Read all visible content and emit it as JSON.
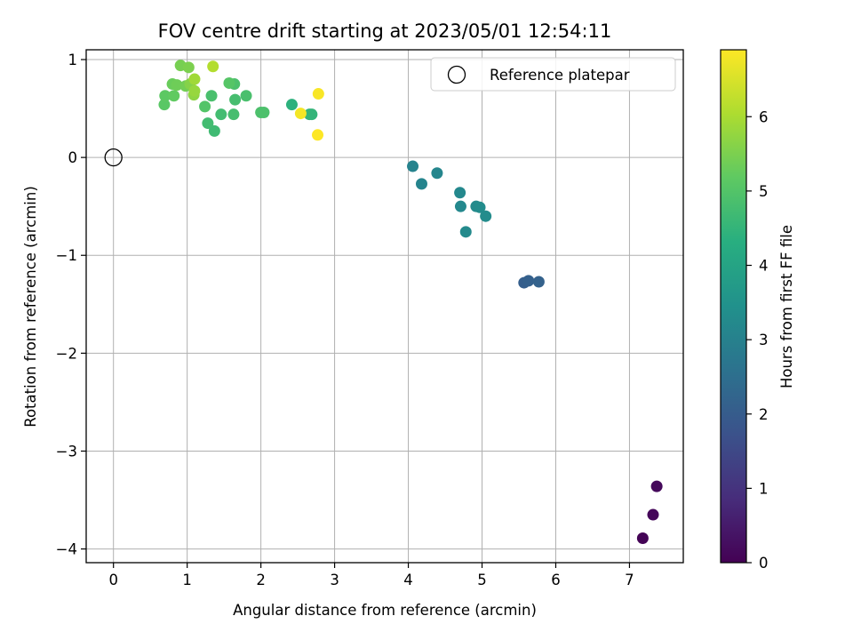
{
  "chart_data": {
    "type": "scatter",
    "title": "FOV centre drift starting at 2023/05/01 12:54:11",
    "xlabel": "Angular distance from reference (arcmin)",
    "ylabel": "Rotation from reference (arcmin)",
    "xlim": [
      -0.37,
      7.73
    ],
    "ylim": [
      -4.14,
      1.1
    ],
    "xticks": [
      0,
      1,
      2,
      3,
      4,
      5,
      6,
      7
    ],
    "yticks": [
      -4,
      -3,
      -2,
      -1,
      0,
      1
    ],
    "xtick_labels": [
      "0",
      "1",
      "2",
      "3",
      "4",
      "5",
      "6",
      "7"
    ],
    "ytick_labels": [
      "−4",
      "−3",
      "−2",
      "−1",
      "0",
      "1"
    ],
    "grid": true,
    "legend": {
      "placement": "top-right",
      "entries": [
        "Reference platepar"
      ]
    },
    "colorbar": {
      "label": "Hours from first FF file",
      "range": [
        0,
        6.9
      ],
      "ticks": [
        0,
        1,
        2,
        3,
        4,
        5,
        6
      ],
      "tick_labels": [
        "0",
        "1",
        "2",
        "3",
        "4",
        "5",
        "6"
      ],
      "colormap": "viridis"
    },
    "reference_point": {
      "x": 0,
      "y": 0
    },
    "points": [
      {
        "x": 7.18,
        "y": -3.89,
        "h": 0.05
      },
      {
        "x": 7.32,
        "y": -3.65,
        "h": 0.1
      },
      {
        "x": 7.37,
        "y": -3.36,
        "h": 0.15
      },
      {
        "x": 5.57,
        "y": -1.28,
        "h": 2.05
      },
      {
        "x": 5.63,
        "y": -1.26,
        "h": 2.1
      },
      {
        "x": 5.77,
        "y": -1.27,
        "h": 2.15
      },
      {
        "x": 4.06,
        "y": -0.09,
        "h": 3.05
      },
      {
        "x": 4.18,
        "y": -0.27,
        "h": 3.1
      },
      {
        "x": 4.39,
        "y": -0.16,
        "h": 3.15
      },
      {
        "x": 4.7,
        "y": -0.36,
        "h": 3.2
      },
      {
        "x": 4.71,
        "y": -0.5,
        "h": 3.2
      },
      {
        "x": 4.78,
        "y": -0.76,
        "h": 3.25
      },
      {
        "x": 4.92,
        "y": -0.5,
        "h": 3.25
      },
      {
        "x": 4.97,
        "y": -0.51,
        "h": 3.3
      },
      {
        "x": 5.05,
        "y": -0.6,
        "h": 3.3
      },
      {
        "x": 2.42,
        "y": 0.54,
        "h": 4.4
      },
      {
        "x": 2.66,
        "y": 0.44,
        "h": 4.45
      },
      {
        "x": 2.69,
        "y": 0.44,
        "h": 4.5
      },
      {
        "x": 1.37,
        "y": 0.27,
        "h": 4.7
      },
      {
        "x": 1.28,
        "y": 0.35,
        "h": 4.75
      },
      {
        "x": 1.46,
        "y": 0.44,
        "h": 4.75
      },
      {
        "x": 1.63,
        "y": 0.44,
        "h": 4.8
      },
      {
        "x": 1.65,
        "y": 0.59,
        "h": 4.8
      },
      {
        "x": 1.33,
        "y": 0.63,
        "h": 4.85
      },
      {
        "x": 1.8,
        "y": 0.63,
        "h": 4.85
      },
      {
        "x": 1.64,
        "y": 0.75,
        "h": 4.9
      },
      {
        "x": 2.0,
        "y": 0.46,
        "h": 4.9
      },
      {
        "x": 2.04,
        "y": 0.46,
        "h": 4.9
      },
      {
        "x": 1.24,
        "y": 0.52,
        "h": 5.0
      },
      {
        "x": 1.57,
        "y": 0.76,
        "h": 5.05
      },
      {
        "x": 0.69,
        "y": 0.54,
        "h": 5.1
      },
      {
        "x": 0.7,
        "y": 0.63,
        "h": 5.15
      },
      {
        "x": 0.82,
        "y": 0.63,
        "h": 5.2
      },
      {
        "x": 0.8,
        "y": 0.75,
        "h": 5.3
      },
      {
        "x": 0.86,
        "y": 0.74,
        "h": 5.35
      },
      {
        "x": 0.98,
        "y": 0.73,
        "h": 5.4
      },
      {
        "x": 0.91,
        "y": 0.94,
        "h": 5.45
      },
      {
        "x": 1.02,
        "y": 0.92,
        "h": 5.5
      },
      {
        "x": 1.04,
        "y": 0.75,
        "h": 5.6
      },
      {
        "x": 1.09,
        "y": 0.64,
        "h": 5.7
      },
      {
        "x": 1.1,
        "y": 0.68,
        "h": 5.8
      },
      {
        "x": 1.1,
        "y": 0.8,
        "h": 5.9
      },
      {
        "x": 1.35,
        "y": 0.93,
        "h": 6.1
      },
      {
        "x": 2.54,
        "y": 0.45,
        "h": 6.8
      },
      {
        "x": 2.78,
        "y": 0.65,
        "h": 6.85
      },
      {
        "x": 2.77,
        "y": 0.23,
        "h": 6.9
      }
    ]
  }
}
